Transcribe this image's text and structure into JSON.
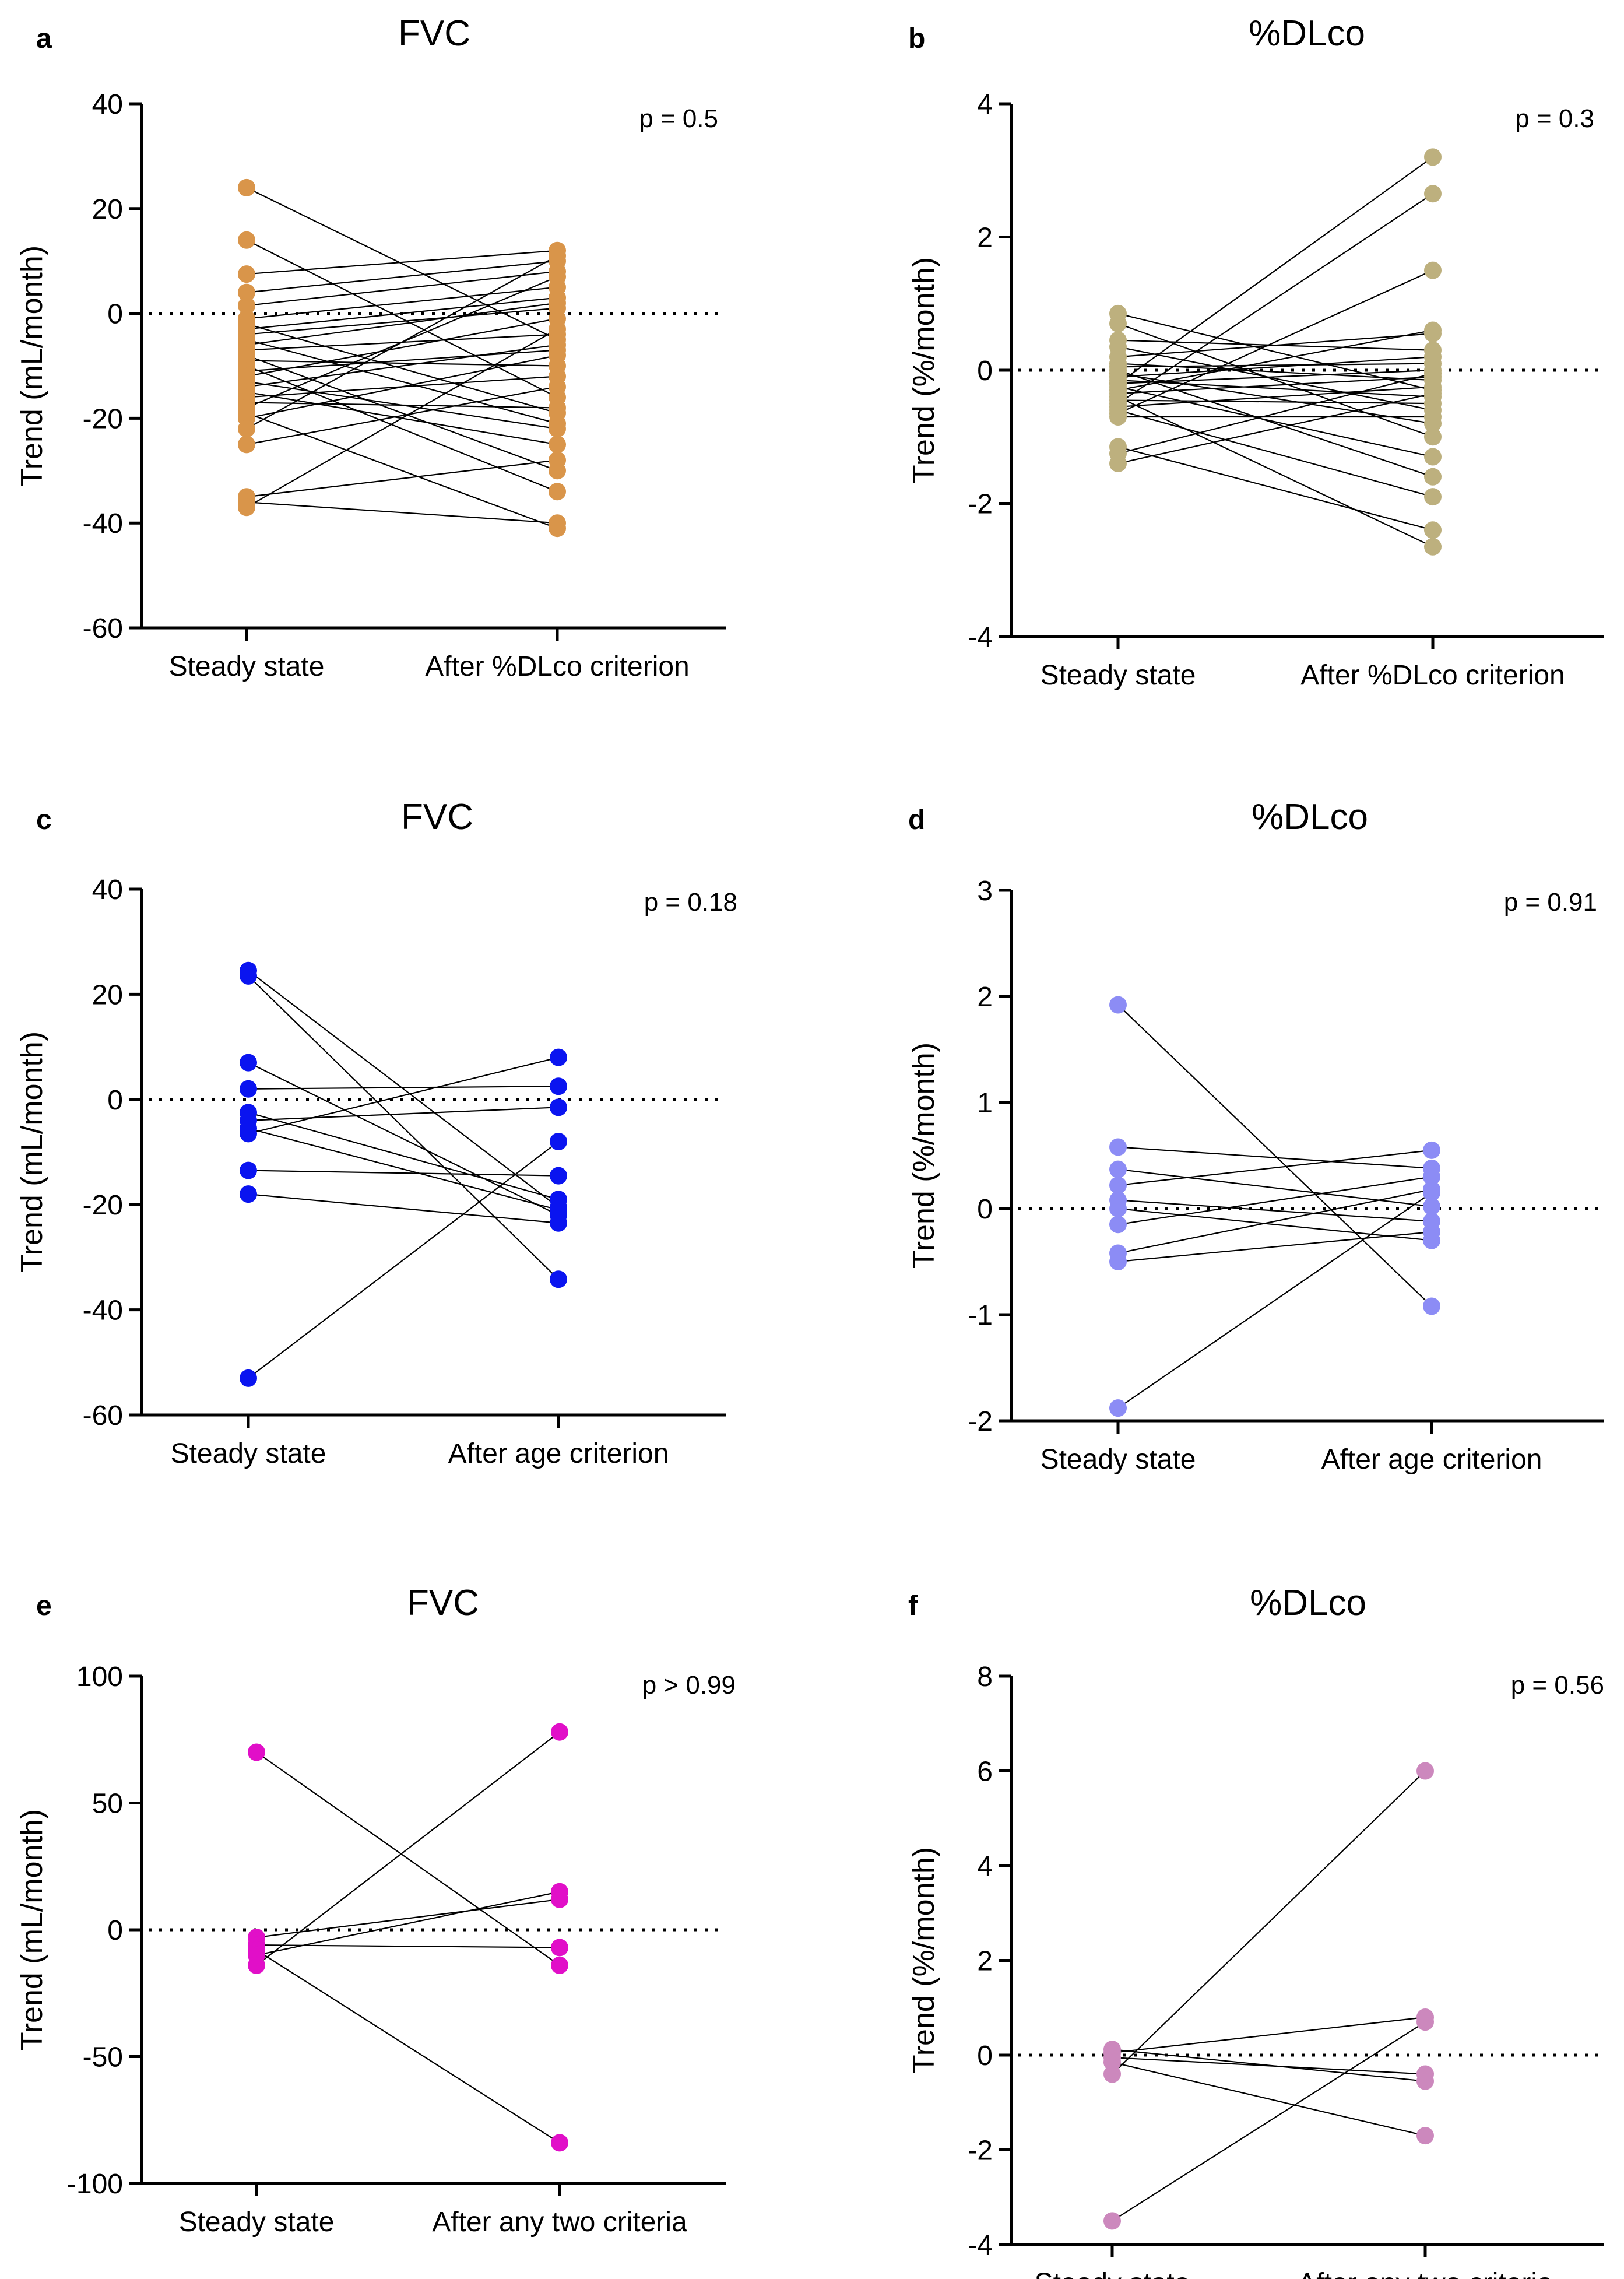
{
  "figure": {
    "background": "#ffffff"
  },
  "chart_data": [
    {
      "panel": "a",
      "type": "scatter",
      "title": "FVC",
      "ylabel": "Trend (mL/month)",
      "categories": [
        "Steady state",
        "After %DLco criterion"
      ],
      "ylim": [
        -60,
        40
      ],
      "yticks": [
        40,
        20,
        0,
        -20,
        -40,
        -60
      ],
      "pvalue": "p = 0.5",
      "color": "#D9954A",
      "reference_line": 0,
      "pairs": [
        [
          24,
          -5
        ],
        [
          14,
          -16
        ],
        [
          7.5,
          12
        ],
        [
          4,
          10
        ],
        [
          1.5,
          8
        ],
        [
          -1,
          5
        ],
        [
          -3,
          3
        ],
        [
          -4,
          1
        ],
        [
          -5,
          -21
        ],
        [
          -6,
          2
        ],
        [
          -7,
          -4
        ],
        [
          -8,
          -30
        ],
        [
          -9,
          -10
        ],
        [
          -10,
          -34
        ],
        [
          -11,
          -7
        ],
        [
          -12,
          -1
        ],
        [
          -13,
          -22
        ],
        [
          -14,
          -6
        ],
        [
          -15,
          -25
        ],
        [
          -16,
          -12
        ],
        [
          -17,
          -18
        ],
        [
          -18,
          7
        ],
        [
          -19,
          -41
        ],
        [
          -20,
          -8
        ],
        [
          -25,
          -14
        ],
        [
          -35,
          -28
        ],
        [
          -36,
          -40
        ],
        [
          -37,
          -3
        ],
        [
          -2,
          -19
        ],
        [
          -22,
          11
        ]
      ]
    },
    {
      "panel": "b",
      "type": "scatter",
      "title": "%DLco",
      "ylabel": "Trend (%/month)",
      "categories": [
        "Steady state",
        "After %DLco criterion"
      ],
      "ylim": [
        -4,
        4
      ],
      "yticks": [
        4,
        2,
        0,
        -2,
        -4
      ],
      "pvalue": "p = 0.3",
      "color": "#BDB07E",
      "reference_line": 0,
      "pairs": [
        [
          0.85,
          -0.3
        ],
        [
          0.7,
          -1.0
        ],
        [
          0.45,
          0.3
        ],
        [
          0.35,
          -0.6
        ],
        [
          0.2,
          0.55
        ],
        [
          0.1,
          -0.15
        ],
        [
          0.05,
          0.1
        ],
        [
          -0.05,
          -0.8
        ],
        [
          -0.1,
          0.2
        ],
        [
          -0.15,
          -0.4
        ],
        [
          -0.2,
          3.2
        ],
        [
          -0.25,
          -1.3
        ],
        [
          -0.3,
          0.6
        ],
        [
          -0.35,
          -0.1
        ],
        [
          -0.4,
          -2.65
        ],
        [
          -0.45,
          -0.5
        ],
        [
          -0.5,
          2.65
        ],
        [
          -0.55,
          -0.25
        ],
        [
          -0.6,
          -1.9
        ],
        [
          -0.65,
          1.5
        ],
        [
          -0.7,
          -0.7
        ],
        [
          -1.15,
          -2.4
        ],
        [
          -1.25,
          -0.05
        ],
        [
          -1.4,
          -0.35
        ],
        [
          0.0,
          -1.6
        ],
        [
          -0.2,
          0.0
        ]
      ]
    },
    {
      "panel": "c",
      "type": "scatter",
      "title": "FVC",
      "ylabel": "Trend (mL/month)",
      "categories": [
        "Steady state",
        "After age criterion"
      ],
      "ylim": [
        -60,
        40
      ],
      "yticks": [
        40,
        20,
        0,
        -20,
        -40,
        -60
      ],
      "pvalue": "p = 0.18",
      "color": "#0A14F0",
      "reference_line": 0,
      "pairs": [
        [
          24.5,
          -20.5
        ],
        [
          23.5,
          -34.2
        ],
        [
          7,
          -22
        ],
        [
          2,
          2.5
        ],
        [
          -2.5,
          -19
        ],
        [
          -4,
          -1.5
        ],
        [
          -5.5,
          -21
        ],
        [
          -6.5,
          8
        ],
        [
          -13.5,
          -14.5
        ],
        [
          -18,
          -23.5
        ],
        [
          -53,
          -8
        ]
      ]
    },
    {
      "panel": "d",
      "type": "scatter",
      "title": "%DLco",
      "ylabel": "Trend (%/month)",
      "categories": [
        "Steady state",
        "After age criterion"
      ],
      "ylim": [
        -2,
        3
      ],
      "yticks": [
        3,
        2,
        1,
        0,
        -1,
        -2
      ],
      "pvalue": "p = 0.91",
      "color": "#8C8CF5",
      "reference_line": 0,
      "pairs": [
        [
          1.92,
          -0.92
        ],
        [
          0.58,
          0.38
        ],
        [
          0.37,
          0.02
        ],
        [
          0.22,
          0.55
        ],
        [
          0.08,
          -0.12
        ],
        [
          -0.15,
          0.3
        ],
        [
          -0.42,
          0.18
        ],
        [
          -0.5,
          -0.22
        ],
        [
          -1.88,
          0.15
        ],
        [
          0.0,
          -0.3
        ]
      ]
    },
    {
      "panel": "e",
      "type": "scatter",
      "title": "FVC",
      "ylabel": "Trend (mL/month)",
      "categories": [
        "Steady state",
        "After any two criteria"
      ],
      "ylim": [
        -100,
        100
      ],
      "yticks": [
        100,
        50,
        0,
        -50,
        -100
      ],
      "pvalue": "p > 0.99",
      "color": "#E10FC8",
      "reference_line": 0,
      "pairs": [
        [
          70,
          -14
        ],
        [
          -3,
          12
        ],
        [
          -6,
          -7
        ],
        [
          -8,
          -84
        ],
        [
          -10,
          15
        ],
        [
          -14,
          78
        ]
      ]
    },
    {
      "panel": "f",
      "type": "scatter",
      "title": "%DLco",
      "ylabel": "Trend (%/month)",
      "categories": [
        "Steady state",
        "After any two criteria"
      ],
      "ylim": [
        -4,
        8
      ],
      "yticks": [
        8,
        6,
        4,
        2,
        0,
        -2,
        -4
      ],
      "pvalue": "p = 0.56",
      "color": "#CC88BD",
      "reference_line": 0,
      "pairs": [
        [
          0.12,
          -0.55
        ],
        [
          0.05,
          0.8
        ],
        [
          -0.05,
          -0.4
        ],
        [
          -0.15,
          -1.7
        ],
        [
          -0.4,
          6.0
        ],
        [
          -3.5,
          0.7
        ]
      ]
    }
  ]
}
